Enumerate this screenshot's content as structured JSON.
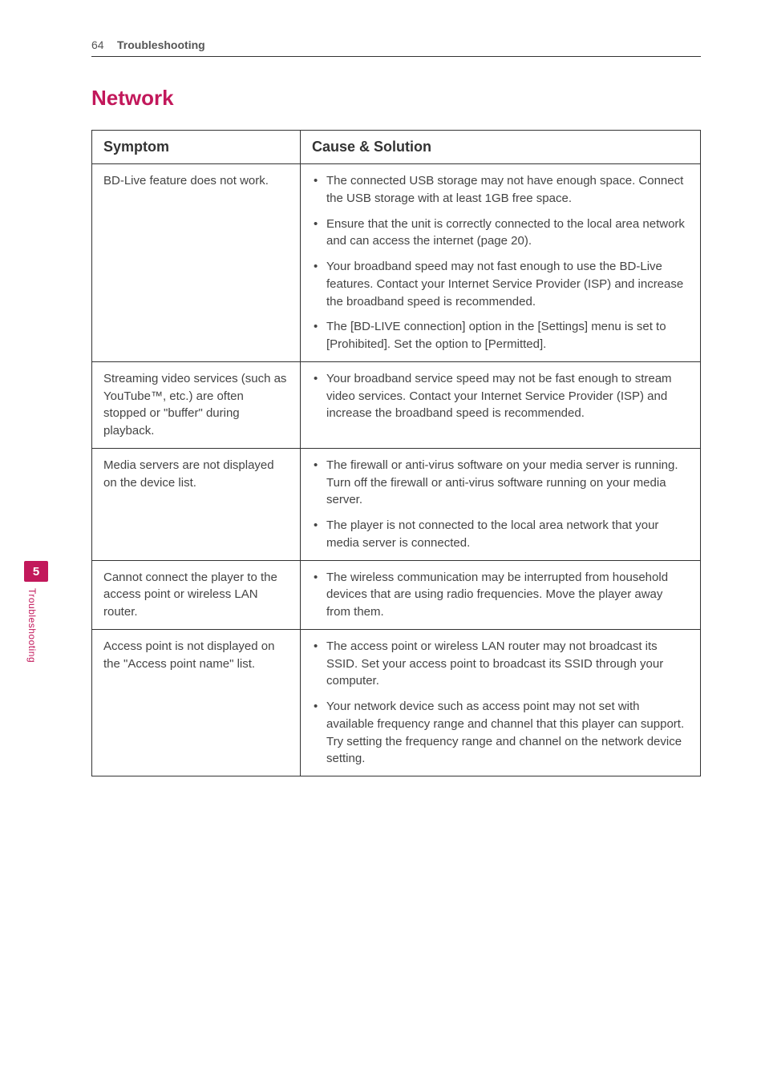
{
  "header": {
    "page_number": "64",
    "section_name": "Troubleshooting"
  },
  "section_title": "Network",
  "side_tab": {
    "number": "5",
    "label": "Troubleshooting"
  },
  "table_headers": {
    "symptom": "Symptom",
    "cause": "Cause & Solution"
  },
  "rows": [
    {
      "symptom": "BD-Live feature does not work.",
      "causes": [
        "The connected USB storage may not have enough space. Connect the USB storage with at least 1GB free space.",
        "Ensure that the unit is correctly connected to the local area network and can access the internet (page 20).",
        "Your broadband speed may not fast enough to use the BD-Live features. Contact your Internet Service Provider (ISP) and increase the broadband speed is recommended.",
        "The [BD-LIVE connection] option in the [Settings] menu is set to [Prohibited]. Set the option to [Permitted]."
      ]
    },
    {
      "symptom": "Streaming video services (such as YouTube™, etc.) are often stopped or \"buffer\" during playback.",
      "causes": [
        "Your broadband service speed may not be fast enough to stream video services. Contact your Internet Service Provider (ISP) and increase the broadband speed is recommended."
      ]
    },
    {
      "symptom": "Media servers are not displayed on the device list.",
      "causes": [
        "The firewall or anti-virus software on your media server is running. Turn off the firewall or anti-virus software running on your media server.",
        "The player is not connected to the local area network that your media server is connected."
      ]
    },
    {
      "symptom": "Cannot connect the player to the access point or wireless LAN router.",
      "causes": [
        "The wireless communication may be interrupted from household devices that are using radio frequencies. Move the player away from them."
      ]
    },
    {
      "symptom": "Access point is not displayed on the \"Access point name\" list.",
      "causes": [
        "The access point or wireless LAN router may not broadcast its SSID. Set your access point to broadcast its SSID through your computer.",
        "Your network device such as access point may not set with available frequency range and channel that this player can support. Try setting the frequency range and channel on the network device setting."
      ]
    }
  ]
}
